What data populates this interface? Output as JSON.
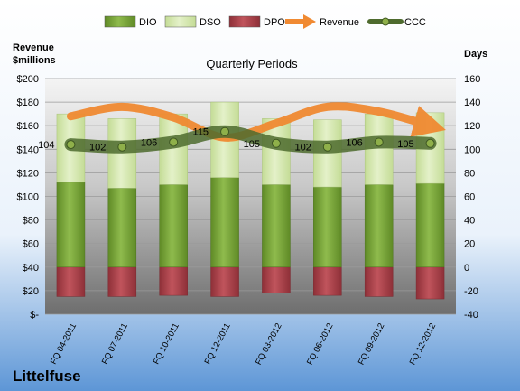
{
  "company": "Littelfuse",
  "chart_data": {
    "type": "bar",
    "title": "Quarterly Periods",
    "left_axis_title": [
      "Revenue",
      "$millions"
    ],
    "right_axis_title": "Days",
    "categories": [
      "FQ 04-2011",
      "FQ 07-2011",
      "FQ 10-2011",
      "FQ 12-2011",
      "FQ 03-2012",
      "FQ 06-2012",
      "FQ 09-2012",
      "FQ 12-2012"
    ],
    "left_ticks": [
      "$-",
      "$20",
      "$40",
      "$60",
      "$80",
      "$100",
      "$120",
      "$140",
      "$160",
      "$180",
      "$200"
    ],
    "right_ticks": [
      "-40",
      "-20",
      "0",
      "20",
      "40",
      "60",
      "80",
      "100",
      "120",
      "140",
      "160"
    ],
    "ylim_left": [
      0,
      200
    ],
    "ylim_right": [
      -40,
      160
    ],
    "legend_position": "top",
    "series": [
      {
        "name": "DIO",
        "color": "#7aa33a",
        "values": [
          72,
          67,
          70,
          76,
          70,
          68,
          70,
          71
        ]
      },
      {
        "name": "DSO",
        "color": "#d7e9b0",
        "values": [
          58,
          59,
          60,
          64,
          56,
          57,
          60,
          60
        ]
      },
      {
        "name": "DPO",
        "color": "#b0474e",
        "values": [
          -25,
          -25,
          -24,
          -25,
          -22,
          -24,
          -25,
          -27
        ]
      },
      {
        "name": "Revenue",
        "color": "#f08a32",
        "values": [
          168,
          176,
          167,
          150,
          162,
          176,
          172,
          160
        ]
      },
      {
        "name": "CCC",
        "color": "#4e6b2e",
        "values": [
          104,
          102,
          106,
          115,
          105,
          102,
          106,
          105
        ]
      }
    ],
    "ccc_labels": [
      "104",
      "102",
      "106",
      "115",
      "105",
      "102",
      "106",
      "105"
    ]
  }
}
